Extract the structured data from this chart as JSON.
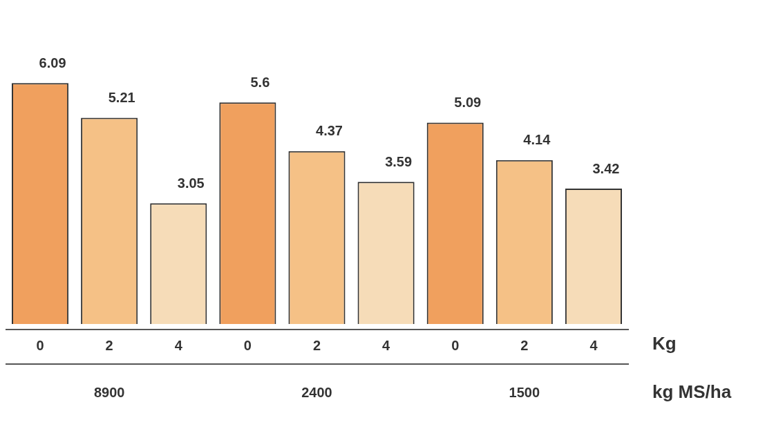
{
  "chart_data": {
    "type": "bar",
    "categories": [
      "0",
      "2",
      "4",
      "0",
      "2",
      "4",
      "0",
      "2",
      "4"
    ],
    "values": [
      6.09,
      5.21,
      3.05,
      5.6,
      4.37,
      3.59,
      5.09,
      4.14,
      3.42
    ],
    "colors": [
      "#f0a05e",
      "#f5c186",
      "#f6dcb8",
      "#f0a05e",
      "#f5c186",
      "#f6dcb8",
      "#f0a05e",
      "#f5c186",
      "#f6dcb8"
    ],
    "data_labels": true,
    "grid": false,
    "legend": false,
    "tick_labels": "x",
    "xlabel": "Kg",
    "annotations": [
      "8900",
      "2400",
      "1500",
      "kg MS/ha"
    ]
  }
}
